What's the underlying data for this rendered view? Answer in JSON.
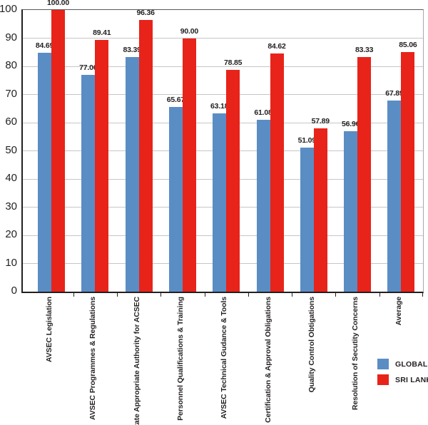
{
  "chart_data": {
    "type": "bar",
    "title": "",
    "categories": [
      "AVSEC Legislation",
      "AVSEC Programmes & Regulations",
      "State Appropriate Authority for ACSEC",
      "Personnel Qualifications & Training",
      "AVSEC Technical Gudance & Tools",
      "Certification & Approval Obligations",
      "Quality Control Obtigations",
      "Resolution of Secutity Concerns",
      "Average"
    ],
    "series": [
      {
        "name": "GLOBAL",
        "color": "#5b8dc5",
        "values": [
          84.69,
          77.06,
          83.39,
          65.67,
          63.18,
          61.08,
          51.09,
          56.96,
          67.89
        ],
        "labels": [
          "84.69",
          "77.06",
          "83.39",
          "65.67",
          "63.18",
          "61.08",
          "51.09",
          "56.96",
          "67.89"
        ]
      },
      {
        "name": "SRI LANKA",
        "color": "#e8231a",
        "values": [
          100.0,
          89.41,
          96.36,
          90.0,
          78.85,
          84.62,
          57.89,
          83.33,
          85.06
        ],
        "labels": [
          "100.00",
          "89.41",
          "96.36",
          "90.00",
          "78.85",
          "84.62",
          "57.89",
          "83.33",
          "85.06"
        ]
      }
    ],
    "y_axis": {
      "min": 0,
      "max": 100,
      "tick_step": 10,
      "ticks": [
        0,
        10,
        20,
        30,
        40,
        50,
        60,
        70,
        80,
        90,
        100
      ]
    },
    "grid": true,
    "legend_position": "bottom-right",
    "value_label_format": "2 decimal places above each bar"
  }
}
